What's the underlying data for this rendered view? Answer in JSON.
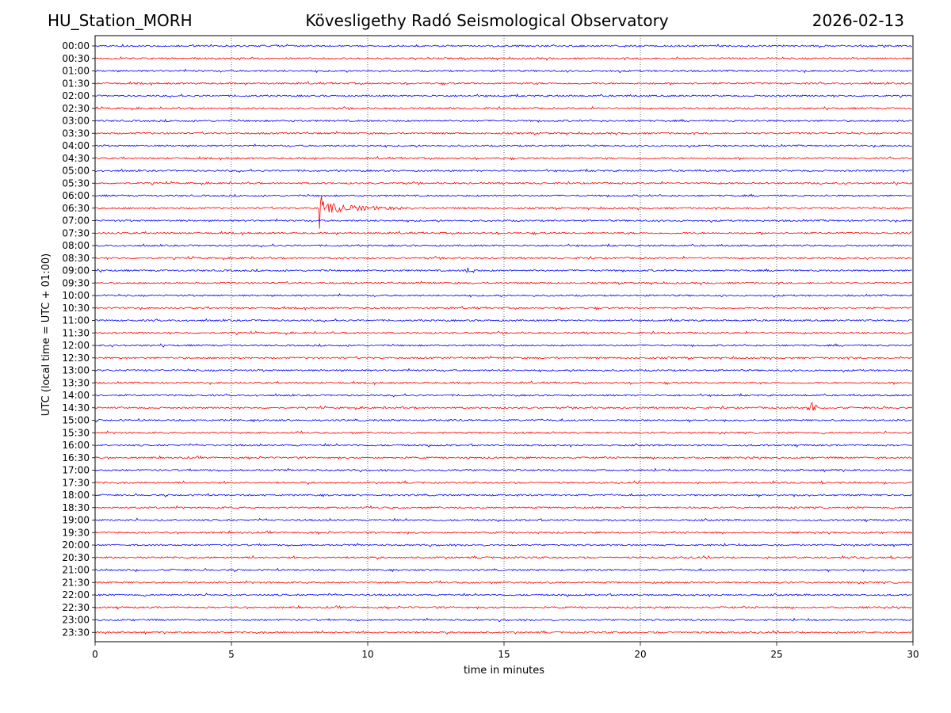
{
  "header": {
    "station": "HU_Station_MORH",
    "title": "Kövesligethy Radó Seismological Observatory",
    "date": "2026-02-13"
  },
  "chart_data": {
    "type": "line",
    "subtype": "helicorder",
    "xlabel": "time in minutes",
    "ylabel": "UTC (local time = UTC + 01:00)",
    "xlim": [
      0,
      30
    ],
    "x_ticks": [
      0,
      5,
      10,
      15,
      20,
      25,
      30
    ],
    "grid": "vertical dotted lines at x ticks",
    "trace_colors": [
      "#0000ff",
      "#ff0000"
    ],
    "rows": [
      "00:00",
      "00:30",
      "01:00",
      "01:30",
      "02:00",
      "02:30",
      "03:00",
      "03:30",
      "04:00",
      "04:30",
      "05:00",
      "05:30",
      "06:00",
      "06:30",
      "07:00",
      "07:30",
      "08:00",
      "08:30",
      "09:00",
      "09:30",
      "10:00",
      "10:30",
      "11:00",
      "11:30",
      "12:00",
      "12:30",
      "13:00",
      "13:30",
      "14:00",
      "14:30",
      "15:00",
      "15:30",
      "16:00",
      "16:30",
      "17:00",
      "17:30",
      "18:00",
      "18:30",
      "19:00",
      "19:30",
      "20:00",
      "20:30",
      "21:00",
      "21:30",
      "22:00",
      "22:30",
      "23:00",
      "23:30"
    ],
    "events": [
      {
        "row": "06:30",
        "minute": 8.2,
        "type": "large"
      },
      {
        "row": "09:00",
        "minute": 13.8,
        "type": "small"
      },
      {
        "row": "14:30",
        "minute": 26.3,
        "type": "small"
      }
    ],
    "background_noise": "continuous low-amplitude noise on all traces"
  }
}
